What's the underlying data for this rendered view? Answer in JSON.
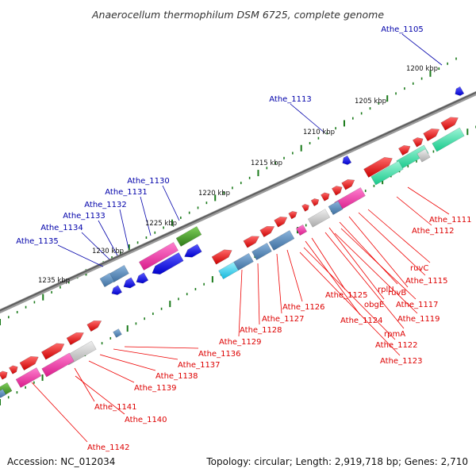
{
  "title": "Anaerocellum thermophilum DSM 6725, complete genome",
  "accession_text": "Accession: NC_012034",
  "topology_text": "Topology: circular; Length: 2,919,718 bp; Genes: 2,710",
  "colors": {
    "reverse_label": "#0000aa",
    "forward_label": "#dd0000",
    "backbone": "#777777",
    "tick": "#1a7a1a",
    "blue_gene": "#0000ee",
    "red_gene": "#ee0000",
    "pink_feature": "#ee2aa0",
    "teal_feature": "#22dd99",
    "steel_feature": "#5588bb",
    "cyan_feature": "#22ccee",
    "grey_feature": "#c4c4c4",
    "olive_feature": "#448822"
  },
  "kbp_ticks": [
    "1200 kbp",
    "1205 kbp",
    "1210 kbp",
    "1215 kbp",
    "1220 kbp",
    "1225 kbp",
    "1230 kbp",
    "1235 kbp"
  ],
  "reverse_labels": [
    "Athe_1105",
    "Athe_1113",
    "Athe_1130",
    "Athe_1131",
    "Athe_1132",
    "Athe_1133",
    "Athe_1134",
    "Athe_1135"
  ],
  "forward_labels": [
    "Athe_1111",
    "Athe_1112",
    "ruvC",
    "Athe_1115",
    "ruvB",
    "rplU",
    "Athe_1117",
    "obgE",
    "Athe_1119",
    "Athe_1125",
    "rpmA",
    "Athe_1124",
    "Athe_1122",
    "Athe_1126",
    "Athe_1127",
    "Athe_1123",
    "Athe_1128",
    "Athe_1129",
    "Athe_1136",
    "Athe_1137",
    "Athe_1138",
    "Athe_1139",
    "Athe_1141",
    "Athe_1140",
    "Athe_1142"
  ]
}
